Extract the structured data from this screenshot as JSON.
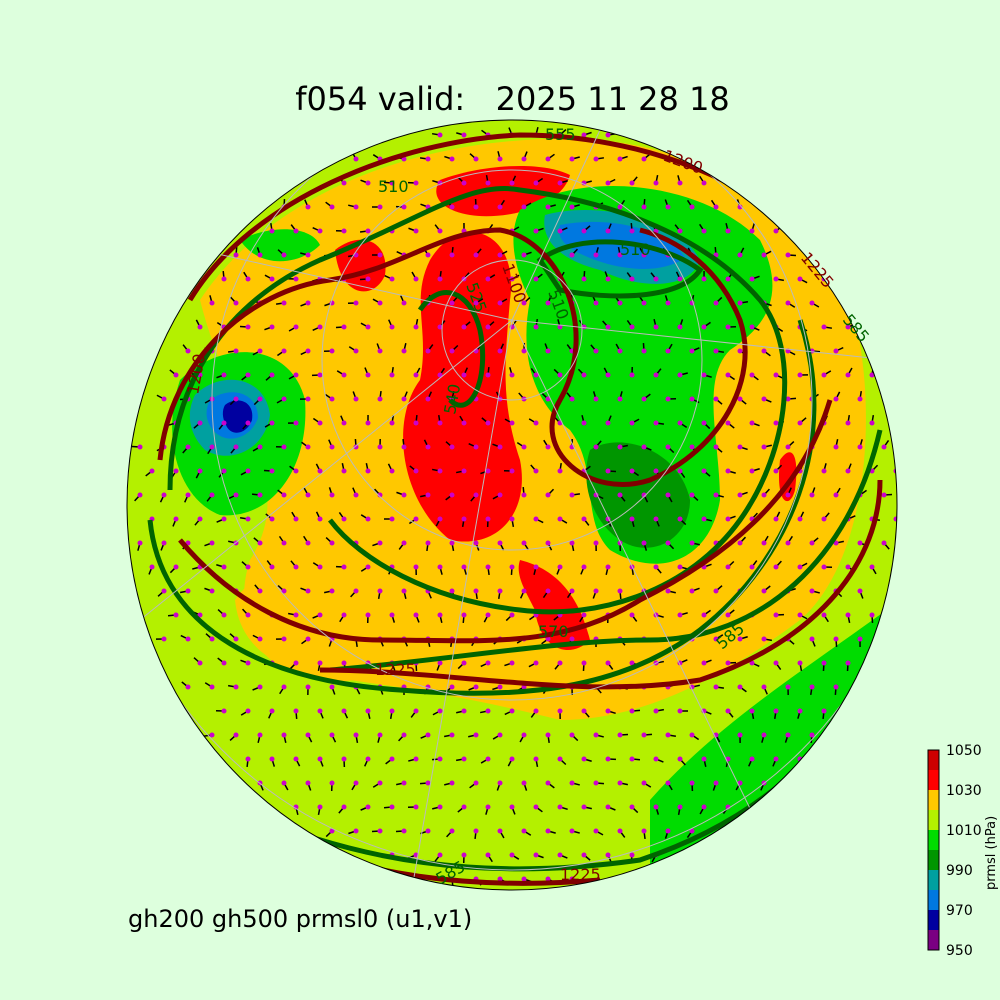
{
  "title": "f054 valid:   2025 11 28 18",
  "subtitle": "gh200 gh500 prmsl0 (u1,v1)",
  "colorbar": {
    "label": "prmsl (hPa)",
    "ticks": [
      "1050",
      "1030",
      "1010",
      "990",
      "970",
      "950"
    ],
    "levels": [
      950,
      960,
      970,
      980,
      990,
      1000,
      1010,
      1020,
      1030,
      1040,
      1050
    ],
    "colors": [
      "#7a0082",
      "#0000a0",
      "#0078e0",
      "#00a0a0",
      "#009600",
      "#00dc00",
      "#b4f000",
      "#ffc800",
      "#ff0000",
      "#cd0000"
    ]
  },
  "contours": {
    "gh500_color": "#006400",
    "gh200_color": "#800000",
    "labels_gh500": [
      "510",
      "510",
      "510",
      "525",
      "540",
      "555",
      "570",
      "585",
      "585",
      "585"
    ],
    "labels_gh200": [
      "1100",
      "1200",
      "1200",
      "1225",
      "1225",
      "1225"
    ]
  },
  "wind_marker_color": "#cc00cc"
}
